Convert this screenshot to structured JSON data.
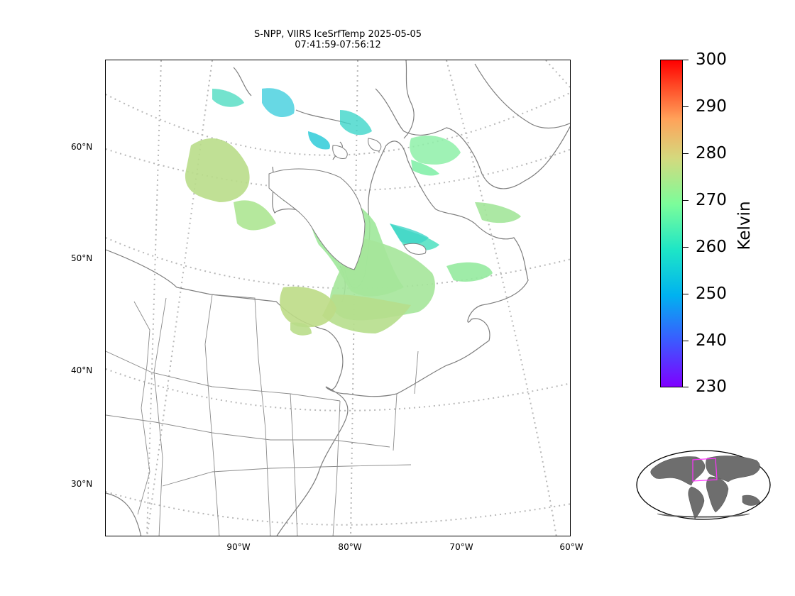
{
  "title": {
    "line1": "S-NPP, VIIRS IceSrfTemp 2025-05-05",
    "line2": "07:41:59-07:56:12"
  },
  "lat_labels": [
    "60°N",
    "50°N",
    "40°N",
    "30°N"
  ],
  "lon_labels": [
    "90°W",
    "80°W",
    "70°W",
    "60°W"
  ],
  "colorbar": {
    "label": "Kelvin",
    "min": 230,
    "max": 300,
    "ticks": [
      "300",
      "290",
      "280",
      "270",
      "260",
      "250",
      "240",
      "230"
    ]
  },
  "colors": {
    "coastline": "#808080",
    "gridline": "#b0b0b0",
    "land_overview": "#6e6e6e",
    "extent_box": "#ff33ff"
  }
}
